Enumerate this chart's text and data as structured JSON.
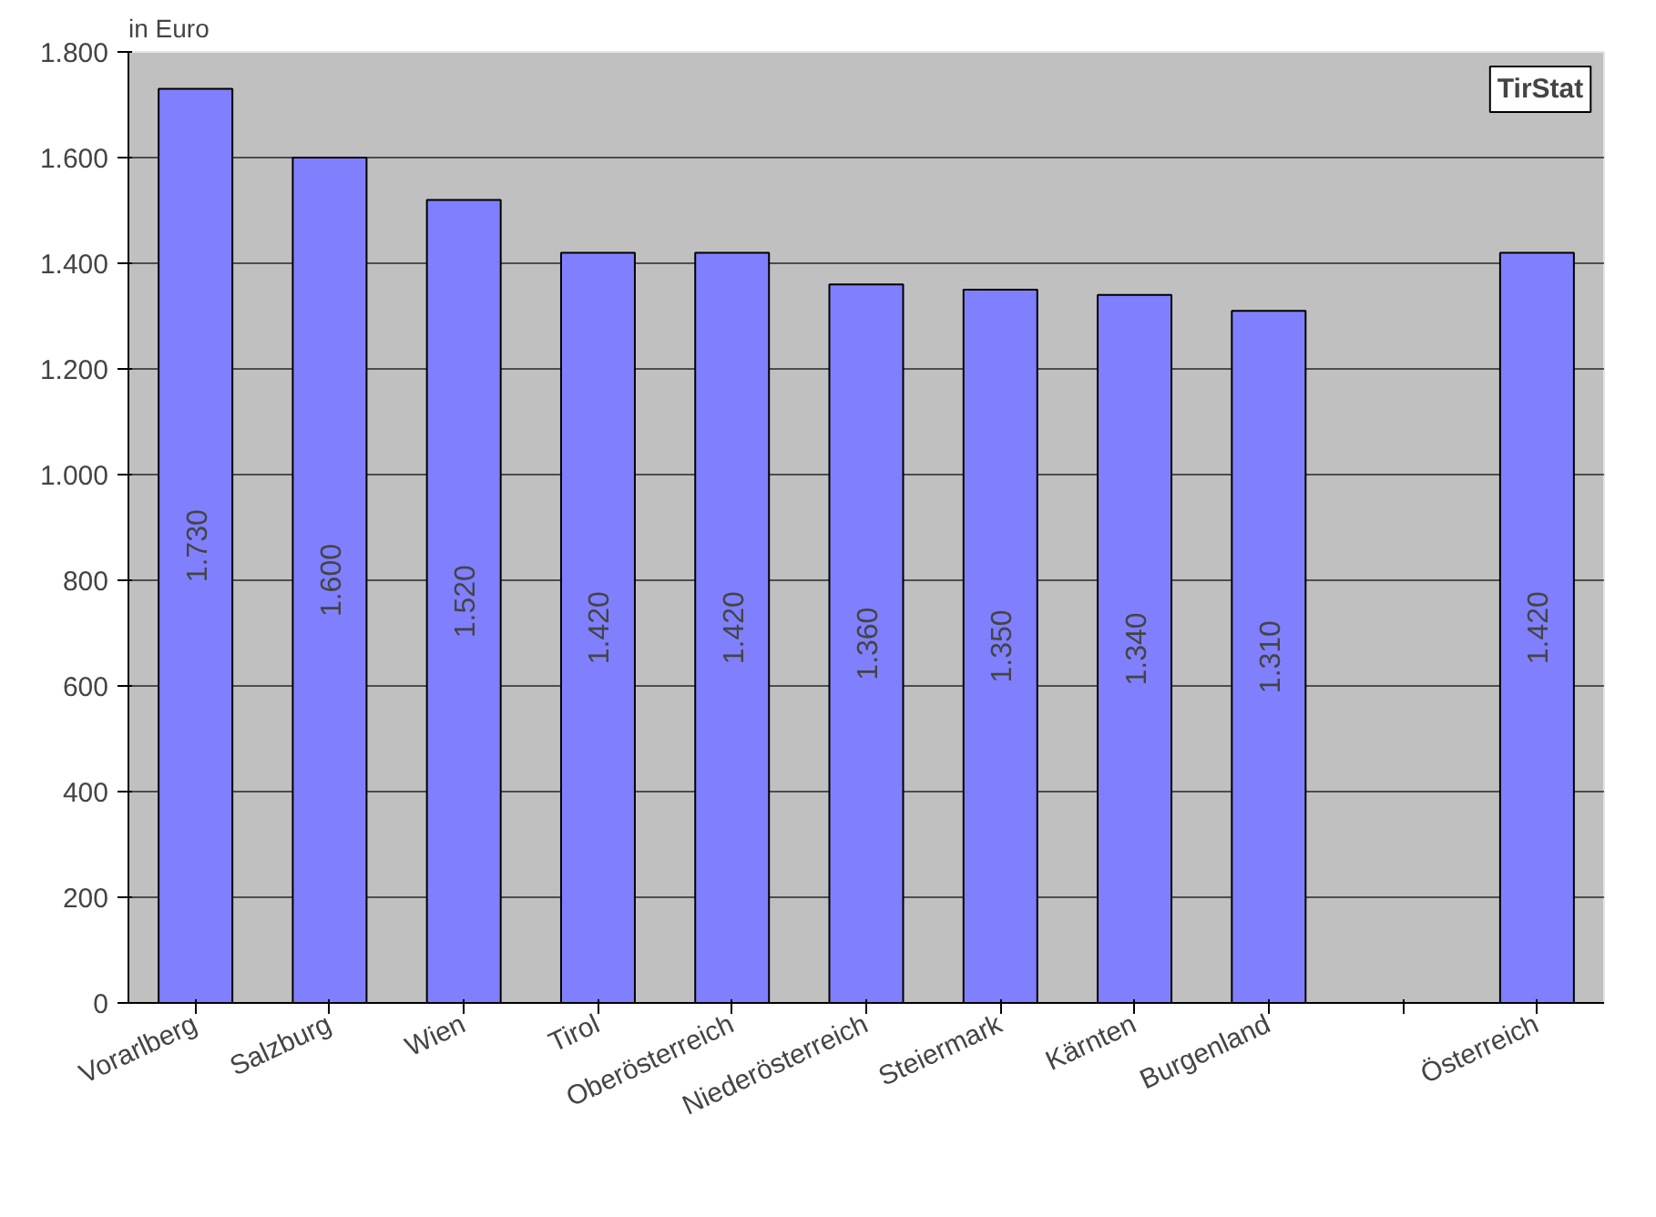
{
  "chart_data": {
    "type": "bar",
    "ylabel": "in Euro",
    "categories": [
      "Vorarlberg",
      "Salzburg",
      "Wien",
      "Tirol",
      "Oberösterreich",
      "Niederösterreich",
      "Steiermark",
      "Kärnten",
      "Burgenland",
      null,
      "Österreich"
    ],
    "values": [
      1730,
      1600,
      1520,
      1420,
      1420,
      1360,
      1350,
      1340,
      1310,
      null,
      1420
    ],
    "value_labels": [
      "1.730",
      "1.600",
      "1.520",
      "1.420",
      "1.420",
      "1.360",
      "1.350",
      "1.340",
      "1.310",
      null,
      "1.420"
    ],
    "color": "#8080ff",
    "ylim": [
      0,
      1800
    ],
    "yticks": [
      {
        "value": 0,
        "label": "0"
      },
      {
        "value": 200,
        "label": "200"
      },
      {
        "value": 400,
        "label": "400"
      },
      {
        "value": 600,
        "label": "600"
      },
      {
        "value": 800,
        "label": "800"
      },
      {
        "value": 1000,
        "label": "1.000"
      },
      {
        "value": 1200,
        "label": "1.200"
      },
      {
        "value": 1400,
        "label": "1.400"
      },
      {
        "value": 1600,
        "label": "1.600"
      },
      {
        "value": 1800,
        "label": "1.800"
      }
    ],
    "grid": "y",
    "annotations": [
      "TirStat"
    ]
  }
}
